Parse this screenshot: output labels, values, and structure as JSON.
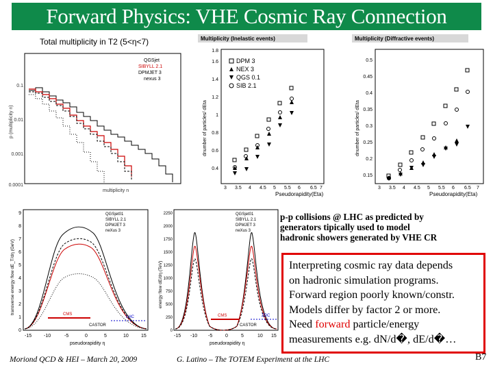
{
  "slide": {
    "title": "Forward Physics: VHE Cosmic Ray Connection",
    "t2_caption": "Total multiplicity in T2 (5<η<7)",
    "pp_caption": [
      "p-p collisions @ LHC as predicted by",
      "generators tipically used to model",
      "hadronic showers generated by VHE CR"
    ],
    "callout": {
      "line1": "Interpreting cosmic ray data depends",
      "line2": "on hadronic simulation programs.",
      "line3": "Forward region poorly known/constr.",
      "line4": "Models differ by factor 2 or more.",
      "line5_pre": "Need ",
      "line5_red": "forward",
      "line5_post": " particle/energy",
      "line6": "measurements e.g. dN/d�, dE/d�…"
    },
    "footer_left": "Moriond QCD & HEI – March 20, 2009",
    "footer_center": "G. Latino – The TOTEM Experiment at the LHC",
    "page_number": "B7",
    "accent_color": "#0f8a4a",
    "callout_border_color": "#e00000"
  },
  "plots": {
    "multiplicity": {
      "legend": [
        "QGSjet",
        "SIBYLL 2.1",
        "DPMJET 3",
        "nexus 3"
      ],
      "yticks": [
        "0.1",
        "0.01",
        "0.001",
        "0.0001"
      ],
      "xticks": [
        "0",
        "20",
        "40",
        "60",
        "80",
        "100",
        "120",
        "140",
        "160",
        "180",
        "200"
      ],
      "xlabel": "multiplicity n",
      "ylabel": "p (multiplicity n)"
    },
    "inelastic": {
      "title": "Multiplicity (Inelastic events)",
      "ylabel": "dnumber of particles/ dEta",
      "xlabel": "Pseudorapidity(Eta)",
      "legend": [
        "DPM 3",
        "NEX 3",
        "QGS 0.1",
        "SIB 2.1"
      ],
      "yticks": [
        "0.4",
        "0.6",
        "0.8",
        "1",
        "1.2",
        "1.4",
        "1.6",
        "1.8"
      ],
      "xticks": [
        "3",
        "3.5",
        "4",
        "4.5",
        "5",
        "5.5",
        "6",
        "6.5",
        "7"
      ]
    },
    "diffractive": {
      "title": "Multiplicity (Diffractive events)",
      "ylabel": "dnumber of particles/ dEta",
      "xlabel": "Pseudorapidity(Eta)",
      "yticks": [
        "0.15",
        "0.2",
        "0.25",
        "0.3",
        "0.35",
        "0.4",
        "0.45",
        "0.5"
      ],
      "xticks": [
        "3",
        "3.5",
        "4",
        "4.5",
        "5",
        "5.5",
        "6",
        "6.5",
        "7"
      ]
    },
    "energy_left": {
      "legend": [
        "QGSjet01",
        "SIBYLL 2.1",
        "DPMJET 3",
        "neXus 3"
      ],
      "ylabel": "transverse energy flow dE_T/dη (GeV)",
      "xlabel": "pseudorapidity η",
      "labels": [
        "CMS",
        "LHC",
        "CASTOR"
      ],
      "yticks": [
        "0",
        "1",
        "2",
        "3",
        "4",
        "5",
        "6",
        "7",
        "8",
        "9"
      ],
      "xticks": [
        "-15",
        "-10",
        "-5",
        "0",
        "5",
        "10",
        "15"
      ]
    },
    "energy_right": {
      "legend": [
        "QGSjet01",
        "SIBYLL 2.1",
        "DPMJET 3",
        "neXus 3"
      ],
      "ylabel": "energy flow dE/dη (TeV)",
      "xlabel": "pseudorapidity η",
      "labels": [
        "CMS",
        "ZDC",
        "CASTOR"
      ],
      "yticks": [
        "0",
        "250",
        "500",
        "750",
        "1000",
        "1250",
        "1500",
        "1750",
        "2000",
        "2250"
      ],
      "xticks": [
        "-15",
        "-10",
        "-5",
        "0",
        "5",
        "10",
        "15"
      ]
    }
  }
}
